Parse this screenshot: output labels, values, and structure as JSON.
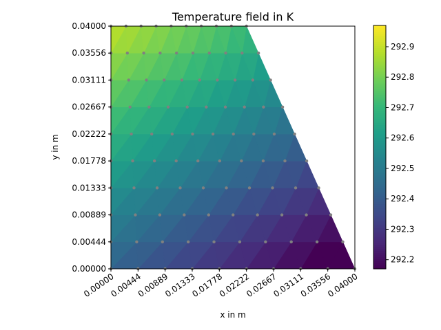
{
  "chart_data": {
    "type": "heatmap",
    "title": "Temperature field in K",
    "xlabel": "x in m",
    "ylabel": "y in m",
    "xlim": [
      0.0,
      0.04
    ],
    "ylim": [
      0.0,
      0.04
    ],
    "x_tick_labels": [
      "0.00000",
      "0.00444",
      "0.00889",
      "0.01333",
      "0.01778",
      "0.02222",
      "0.02667",
      "0.03111",
      "0.03556",
      "0.04000"
    ],
    "y_tick_labels": [
      "0.00000",
      "0.00444",
      "0.00889",
      "0.01333",
      "0.01778",
      "0.02222",
      "0.02667",
      "0.03111",
      "0.03556",
      "0.04000"
    ],
    "grid_nodes": 10,
    "mesh": "triangular",
    "domain_top_edge_x": [
      0.0,
      0.02222
    ],
    "domain_bottom_edge_x": [
      0.0,
      0.04
    ],
    "temperature_range": [
      292.17,
      292.97
    ],
    "temperature_model": {
      "description": "linear field",
      "T0": 292.5,
      "dT_dx": -8.0,
      "dT_dy": 12.0
    },
    "colormap": "viridis",
    "colorbar": {
      "ticks": [
        292.2,
        292.3,
        292.4,
        292.5,
        292.6,
        292.7,
        292.8,
        292.9
      ],
      "tick_labels": [
        "292.2",
        "292.3",
        "292.4",
        "292.5",
        "292.6",
        "292.7",
        "292.8",
        "292.9"
      ]
    },
    "node_marker_color": "#808080"
  }
}
